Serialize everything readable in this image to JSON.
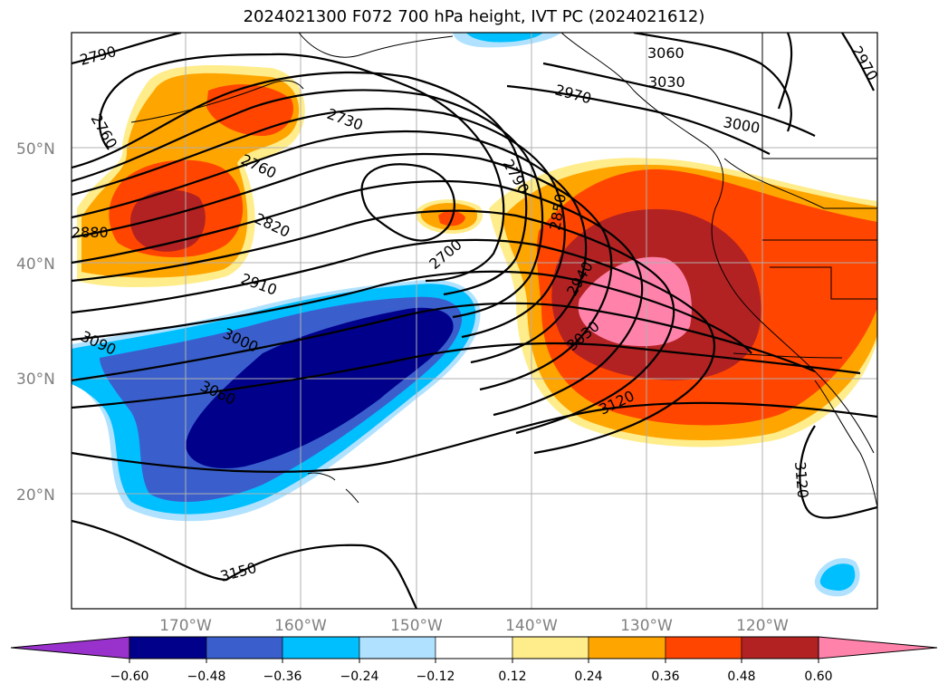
{
  "title": "2024021300 F072 700 hPa height, IVT PC (2024021612)",
  "lat_labels": [
    "50°N",
    "40°N",
    "30°N",
    "20°N"
  ],
  "lon_labels": [
    "170°W",
    "160°W",
    "150°W",
    "140°W",
    "130°W",
    "120°W"
  ],
  "contour_labels": [
    "2790",
    "2760",
    "2730",
    "2760",
    "2820",
    "2880",
    "2910",
    "2790",
    "2850",
    "2700",
    "2940",
    "3030",
    "3000",
    "3090",
    "3060",
    "3120",
    "3150",
    "3060",
    "3030",
    "2970",
    "3000",
    "2970",
    "3120"
  ],
  "colorbar": {
    "ticks": [
      "−0.60",
      "−0.48",
      "−0.36",
      "−0.24",
      "−0.12",
      "0.12",
      "0.24",
      "0.36",
      "0.48",
      "0.60"
    ],
    "colors": [
      "#9932CC",
      "#00008B",
      "#3A5FCD",
      "#00BFFF",
      "#B0E2FF",
      "#FFFFFF",
      "#FFEC8B",
      "#FFA500",
      "#FF4500",
      "#B22222",
      "#FF82AB",
      "#FF82AB"
    ]
  },
  "palette": {
    "pos1": "#FFEC8B",
    "pos2": "#FFA500",
    "pos3": "#FF4500",
    "pos4": "#B22222",
    "pos5": "#FF82AB",
    "neg1": "#B0E2FF",
    "neg2": "#00BFFF",
    "neg3": "#3A5FCD",
    "neg4": "#00008B"
  }
}
